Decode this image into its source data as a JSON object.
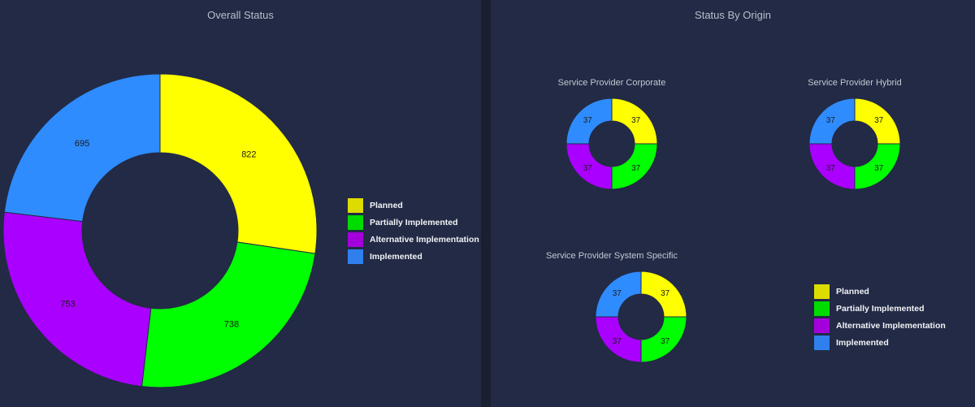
{
  "panels": {
    "left_title": "Overall Status",
    "right_title": "Status By Origin"
  },
  "legend": [
    {
      "label": "Planned",
      "color": "#dcdc00"
    },
    {
      "label": "Partially Implemented",
      "color": "#00dc00"
    },
    {
      "label": "Alternative Implementation",
      "color": "#a400dc"
    },
    {
      "label": "Implemented",
      "color": "#2f80ed"
    }
  ],
  "colors": {
    "planned": "#ffff00",
    "partially_implemented": "#00ff00",
    "alternative_implementation": "#aa00ff",
    "implemented": "#2f8cff",
    "background": "#222a45"
  },
  "chart_data": [
    {
      "type": "pie",
      "donut": true,
      "title": "Overall Status",
      "categories": [
        "Planned",
        "Partially Implemented",
        "Alternative Implementation",
        "Implemented"
      ],
      "values": [
        822,
        738,
        753,
        695
      ],
      "labels": [
        "822",
        "738",
        "753",
        "695"
      ]
    },
    {
      "type": "pie",
      "donut": true,
      "title": "Service Provider Corporate",
      "categories": [
        "Planned",
        "Partially Implemented",
        "Alternative Implementation",
        "Implemented"
      ],
      "values": [
        37,
        37,
        37,
        37
      ],
      "labels": [
        "37",
        "37",
        "37",
        "37"
      ]
    },
    {
      "type": "pie",
      "donut": true,
      "title": "Service Provider Hybrid",
      "categories": [
        "Planned",
        "Partially Implemented",
        "Alternative Implementation",
        "Implemented"
      ],
      "values": [
        37,
        37,
        37,
        37
      ],
      "labels": [
        "37",
        "37",
        "37",
        "37"
      ]
    },
    {
      "type": "pie",
      "donut": true,
      "title": "Service Provider System Specific",
      "categories": [
        "Planned",
        "Partially Implemented",
        "Alternative Implementation",
        "Implemented"
      ],
      "values": [
        37,
        37,
        37,
        37
      ],
      "labels": [
        "37",
        "37",
        "37",
        "37"
      ]
    }
  ]
}
